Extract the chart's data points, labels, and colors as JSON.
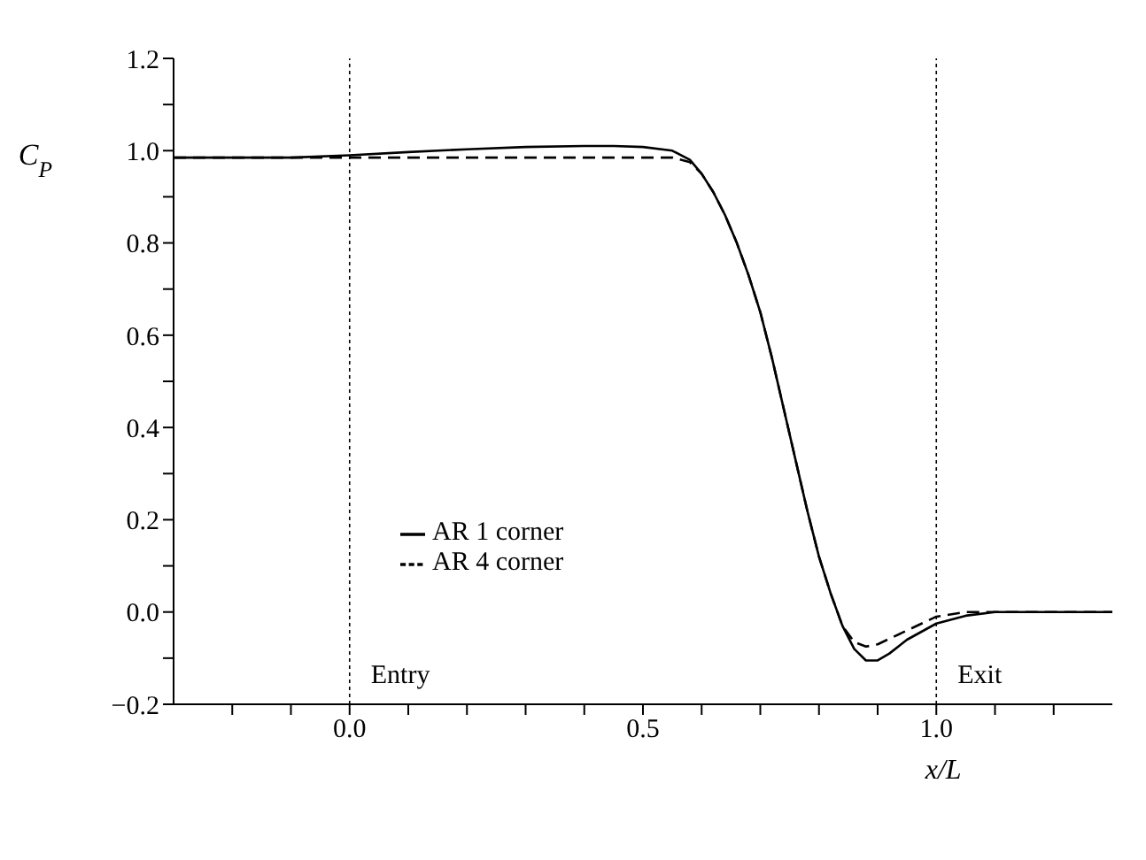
{
  "chart_data": {
    "type": "line",
    "xlabel": "x/L",
    "ylabel": "C$_{P}$",
    "xlim": [
      -0.3,
      1.3
    ],
    "xticks": [
      {
        "value": -0.2,
        "label": null
      },
      {
        "value": -0.1,
        "label": null
      },
      {
        "value": 0,
        "label": "0.0"
      },
      {
        "value": 0.1,
        "label": null
      },
      {
        "value": 0.2,
        "label": null
      },
      {
        "value": 0.3,
        "label": null
      },
      {
        "value": 0.4,
        "label": null
      },
      {
        "value": 0.5,
        "label": "0.5"
      },
      {
        "value": 0.6,
        "label": null
      },
      {
        "value": 0.7,
        "label": null
      },
      {
        "value": 0.8,
        "label": null
      },
      {
        "value": 0.9,
        "label": null
      },
      {
        "value": 1,
        "label": "1.0"
      },
      {
        "value": 1.1,
        "label": null
      },
      {
        "value": 1.2,
        "label": null
      }
    ],
    "ylim": [
      -0.2,
      1.2
    ],
    "yticks": [
      {
        "value": -0.2,
        "label": "−0.2"
      },
      {
        "value": -0.1,
        "label": null
      },
      {
        "value": 0,
        "label": "0.0"
      },
      {
        "value": 0.1,
        "label": null
      },
      {
        "value": 0.2,
        "label": "0.2"
      },
      {
        "value": 0.3,
        "label": null
      },
      {
        "value": 0.4,
        "label": "0.4"
      },
      {
        "value": 0.5,
        "label": null
      },
      {
        "value": 0.6,
        "label": "0.6"
      },
      {
        "value": 0.7,
        "label": null
      },
      {
        "value": 0.8,
        "label": "0.8"
      },
      {
        "value": 0.9,
        "label": null
      },
      {
        "value": 1,
        "label": "1.0"
      },
      {
        "value": 1.1,
        "label": null
      },
      {
        "value": 1.2,
        "label": "1.2"
      }
    ],
    "grid": false,
    "legend": "left",
    "marker": "none",
    "series": [
      {
        "name": "AR 1 corner",
        "color": "#000000",
        "line_style": "solid",
        "x": [
          -0.3,
          -0.1,
          0,
          0.1,
          0.2,
          0.3,
          0.4,
          0.45,
          0.5,
          0.55,
          0.58,
          0.6,
          0.62,
          0.64,
          0.66,
          0.68,
          0.7,
          0.72,
          0.74,
          0.76,
          0.78,
          0.8,
          0.82,
          0.84,
          0.86,
          0.88,
          0.9,
          0.92,
          0.95,
          1.0,
          1.05,
          1.1,
          1.3
        ],
        "values": [
          0.985,
          0.985,
          0.99,
          0.997,
          1.003,
          1.008,
          1.01,
          1.01,
          1.008,
          1.0,
          0.98,
          0.95,
          0.91,
          0.86,
          0.8,
          0.73,
          0.65,
          0.55,
          0.44,
          0.33,
          0.22,
          0.12,
          0.04,
          -0.03,
          -0.08,
          -0.105,
          -0.105,
          -0.09,
          -0.06,
          -0.025,
          -0.008,
          0,
          0
        ]
      },
      {
        "name": "AR 4 corner",
        "color": "#000000",
        "line_style": "dashed",
        "x": [
          -0.3,
          0,
          0.3,
          0.55,
          0.58,
          0.6,
          0.62,
          0.64,
          0.66,
          0.68,
          0.7,
          0.72,
          0.74,
          0.76,
          0.78,
          0.8,
          0.82,
          0.84,
          0.86,
          0.88,
          0.9,
          0.95,
          1.0,
          1.05,
          1.3
        ],
        "values": [
          0.985,
          0.985,
          0.985,
          0.985,
          0.975,
          0.95,
          0.91,
          0.86,
          0.8,
          0.73,
          0.65,
          0.55,
          0.44,
          0.33,
          0.22,
          0.12,
          0.04,
          -0.03,
          -0.065,
          -0.075,
          -0.07,
          -0.04,
          -0.01,
          0,
          0
        ]
      }
    ],
    "ref_lines": [
      {
        "axis": "x",
        "value": 0,
        "label": "Entry",
        "line_style": "dotted"
      },
      {
        "axis": "x",
        "value": 1,
        "label": "Exit",
        "line_style": "dotted"
      }
    ]
  }
}
